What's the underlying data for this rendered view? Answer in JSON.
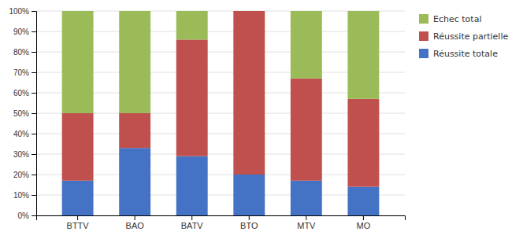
{
  "chart_data": {
    "type": "bar",
    "stacked": true,
    "categories": [
      "BTTV",
      "BAO",
      "BATV",
      "BTO",
      "MTV",
      "MO"
    ],
    "series": [
      {
        "name": "Réussite totale",
        "color": "#4472C4",
        "values": [
          17,
          33,
          29,
          20,
          17,
          14
        ]
      },
      {
        "name": "Réussite partielle",
        "color": "#C0504D",
        "values": [
          33,
          17,
          57,
          80,
          50,
          43
        ]
      },
      {
        "name": "Echec total",
        "color": "#9BBB59",
        "values": [
          50,
          50,
          14,
          0,
          33,
          43
        ]
      }
    ],
    "ylim": [
      0,
      100
    ],
    "yticks": [
      {
        "value": 0,
        "label": "0%"
      },
      {
        "value": 10,
        "label": "10%"
      },
      {
        "value": 20,
        "label": "20%"
      },
      {
        "value": 30,
        "label": "30%"
      },
      {
        "value": 40,
        "label": "40%"
      },
      {
        "value": 50,
        "label": "50%"
      },
      {
        "value": 60,
        "label": "60%"
      },
      {
        "value": 70,
        "label": "70%"
      },
      {
        "value": 80,
        "label": "80%"
      },
      {
        "value": 90,
        "label": "90%"
      },
      {
        "value": 100,
        "label": "100%"
      }
    ],
    "grid": true,
    "legend": "right"
  }
}
